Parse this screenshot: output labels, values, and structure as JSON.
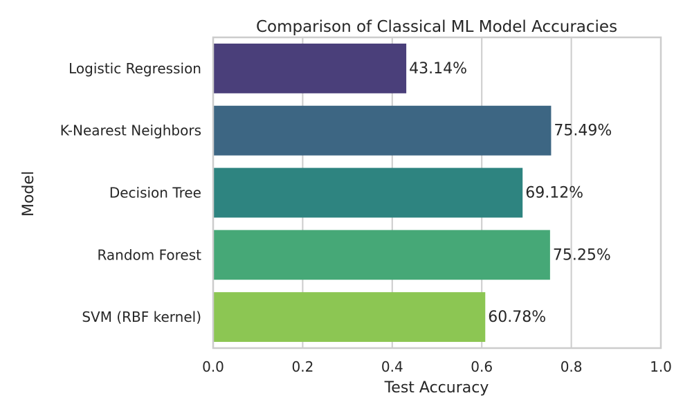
{
  "chart_data": {
    "type": "bar",
    "orientation": "horizontal",
    "title": "Comparison of Classical ML Model Accuracies",
    "xlabel": "Test Accuracy",
    "ylabel": "Model",
    "xlim": [
      0.0,
      1.0
    ],
    "x_ticks": [
      0.0,
      0.2,
      0.4,
      0.6,
      0.8,
      1.0
    ],
    "x_tick_labels": [
      "0.0",
      "0.2",
      "0.4",
      "0.6",
      "0.8",
      "1.0"
    ],
    "grid": true,
    "categories": [
      "Logistic Regression",
      "K-Nearest Neighbors",
      "Decision Tree",
      "Random Forest",
      "SVM (RBF kernel)"
    ],
    "values": [
      0.4314,
      0.7549,
      0.6912,
      0.7525,
      0.6078
    ],
    "data_labels": [
      "43.14%",
      "75.49%",
      "69.12%",
      "75.25%",
      "60.78%"
    ],
    "colors": [
      "#4a3f7a",
      "#3d6683",
      "#2e8480",
      "#46a877",
      "#8cc653"
    ]
  }
}
